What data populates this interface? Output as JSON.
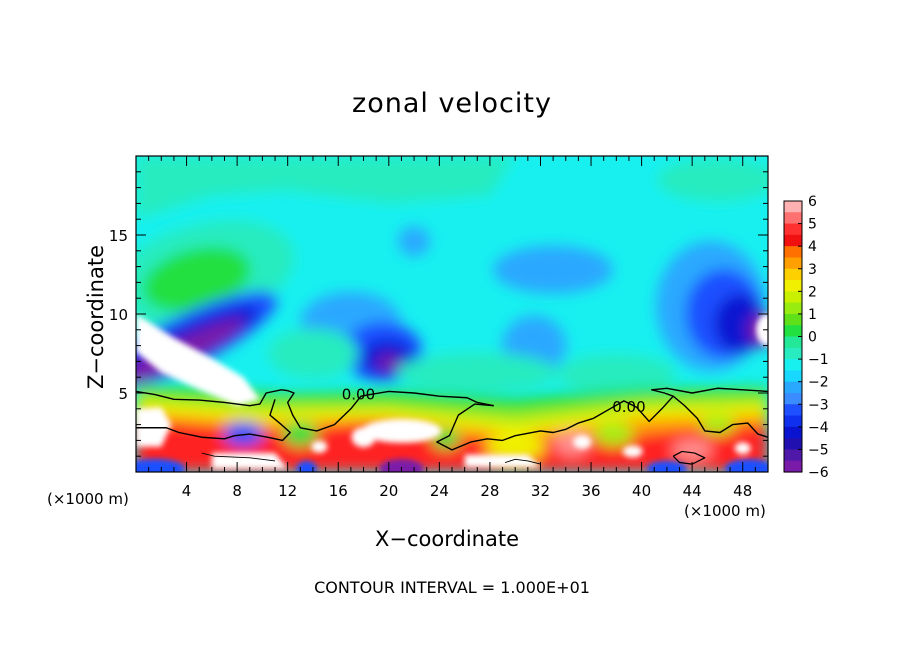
{
  "chart_data": {
    "type": "heatmap",
    "title": "zonal velocity",
    "xlabel": "X−coordinate",
    "ylabel": "Z−coordinate",
    "x_unit_label": "(×1000 m)",
    "xlim": [
      0,
      50
    ],
    "ylim": [
      0,
      20
    ],
    "x_ticks": [
      4,
      8,
      12,
      16,
      20,
      24,
      28,
      32,
      36,
      40,
      44,
      48
    ],
    "y_ticks": [
      5,
      10,
      15
    ],
    "colorbar": {
      "ticks": [
        "6",
        "5",
        "4",
        "3",
        "2",
        "1",
        "0",
        "−1",
        "−2",
        "−3",
        "−4",
        "−5",
        "−6"
      ],
      "range": [
        -6,
        6
      ]
    },
    "contour_labels": [
      "0.00",
      "0.00"
    ],
    "footer": "CONTOUR INTERVAL = 1.000E+01",
    "colors": {
      "violet": "#7a1aa8",
      "blue_dark": "#0a14d0",
      "blue": "#1e50ff",
      "light_blue": "#2aa8ff",
      "cyan": "#18f0f0",
      "aqua_green": "#28ecc0",
      "green": "#22e040",
      "yellow_green": "#a8ec18",
      "yellow": "#f0f000",
      "orange": "#ffa000",
      "red": "#ff2020",
      "pink": "#ff9090",
      "contour": "#000000",
      "void": "#ffffff"
    }
  }
}
